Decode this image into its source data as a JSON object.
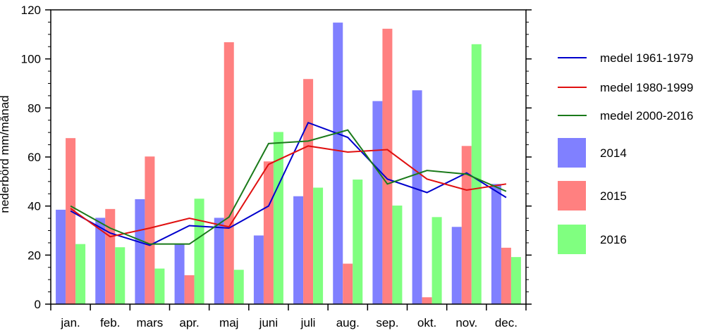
{
  "chart_data": {
    "type": "bar",
    "title": "",
    "xlabel": "",
    "ylabel": "nederbörd mm/månad",
    "ylim": [
      0,
      120
    ],
    "yticks": [
      0,
      20,
      40,
      60,
      80,
      100,
      120
    ],
    "grid": false,
    "legend_position": "right",
    "categories": [
      "jan.",
      "feb.",
      "mars",
      "apr.",
      "maj",
      "juni",
      "juli",
      "aug.",
      "sep.",
      "okt.",
      "nov.",
      "dec."
    ],
    "series": [
      {
        "name": "2014",
        "kind": "bar",
        "color": "#8080ff",
        "values": [
          38.5,
          35.2,
          42.8,
          24.5,
          35.2,
          28,
          44,
          114.8,
          82.8,
          87.2,
          31.5,
          49
        ]
      },
      {
        "name": "2015",
        "kind": "bar",
        "color": "#ff8080",
        "values": [
          67.7,
          38.8,
          60.2,
          11.8,
          106.8,
          58.2,
          91.8,
          16.5,
          112.3,
          2.8,
          64.5,
          23
        ]
      },
      {
        "name": "2016",
        "kind": "bar",
        "color": "#80ff80",
        "values": [
          24.5,
          23.2,
          14.5,
          43,
          14,
          70.2,
          47.5,
          50.8,
          40.2,
          35.5,
          106,
          19.2
        ]
      }
    ],
    "lines": [
      {
        "name": "medel 1961-1979",
        "kind": "line",
        "color": "#0000cc",
        "values": [
          38,
          29,
          24,
          32,
          31,
          40,
          74,
          68,
          51,
          45.5,
          53.5,
          43.5
        ]
      },
      {
        "name": "medel 1980-1999",
        "kind": "line",
        "color": "#e01010",
        "values": [
          39,
          27.5,
          31,
          35,
          31.5,
          57,
          64.5,
          62,
          63,
          51,
          46.5,
          49
        ]
      },
      {
        "name": "medel 2000-2016",
        "kind": "line",
        "color": "#1a7a1a",
        "values": [
          40,
          31,
          24.5,
          24.5,
          35.5,
          65.5,
          66.5,
          71,
          49,
          54.5,
          53,
          46
        ]
      }
    ],
    "legend_order": [
      "medel 1961-1979",
      "medel 1980-1999",
      "medel 2000-2016",
      "2014",
      "2015",
      "2016"
    ]
  }
}
